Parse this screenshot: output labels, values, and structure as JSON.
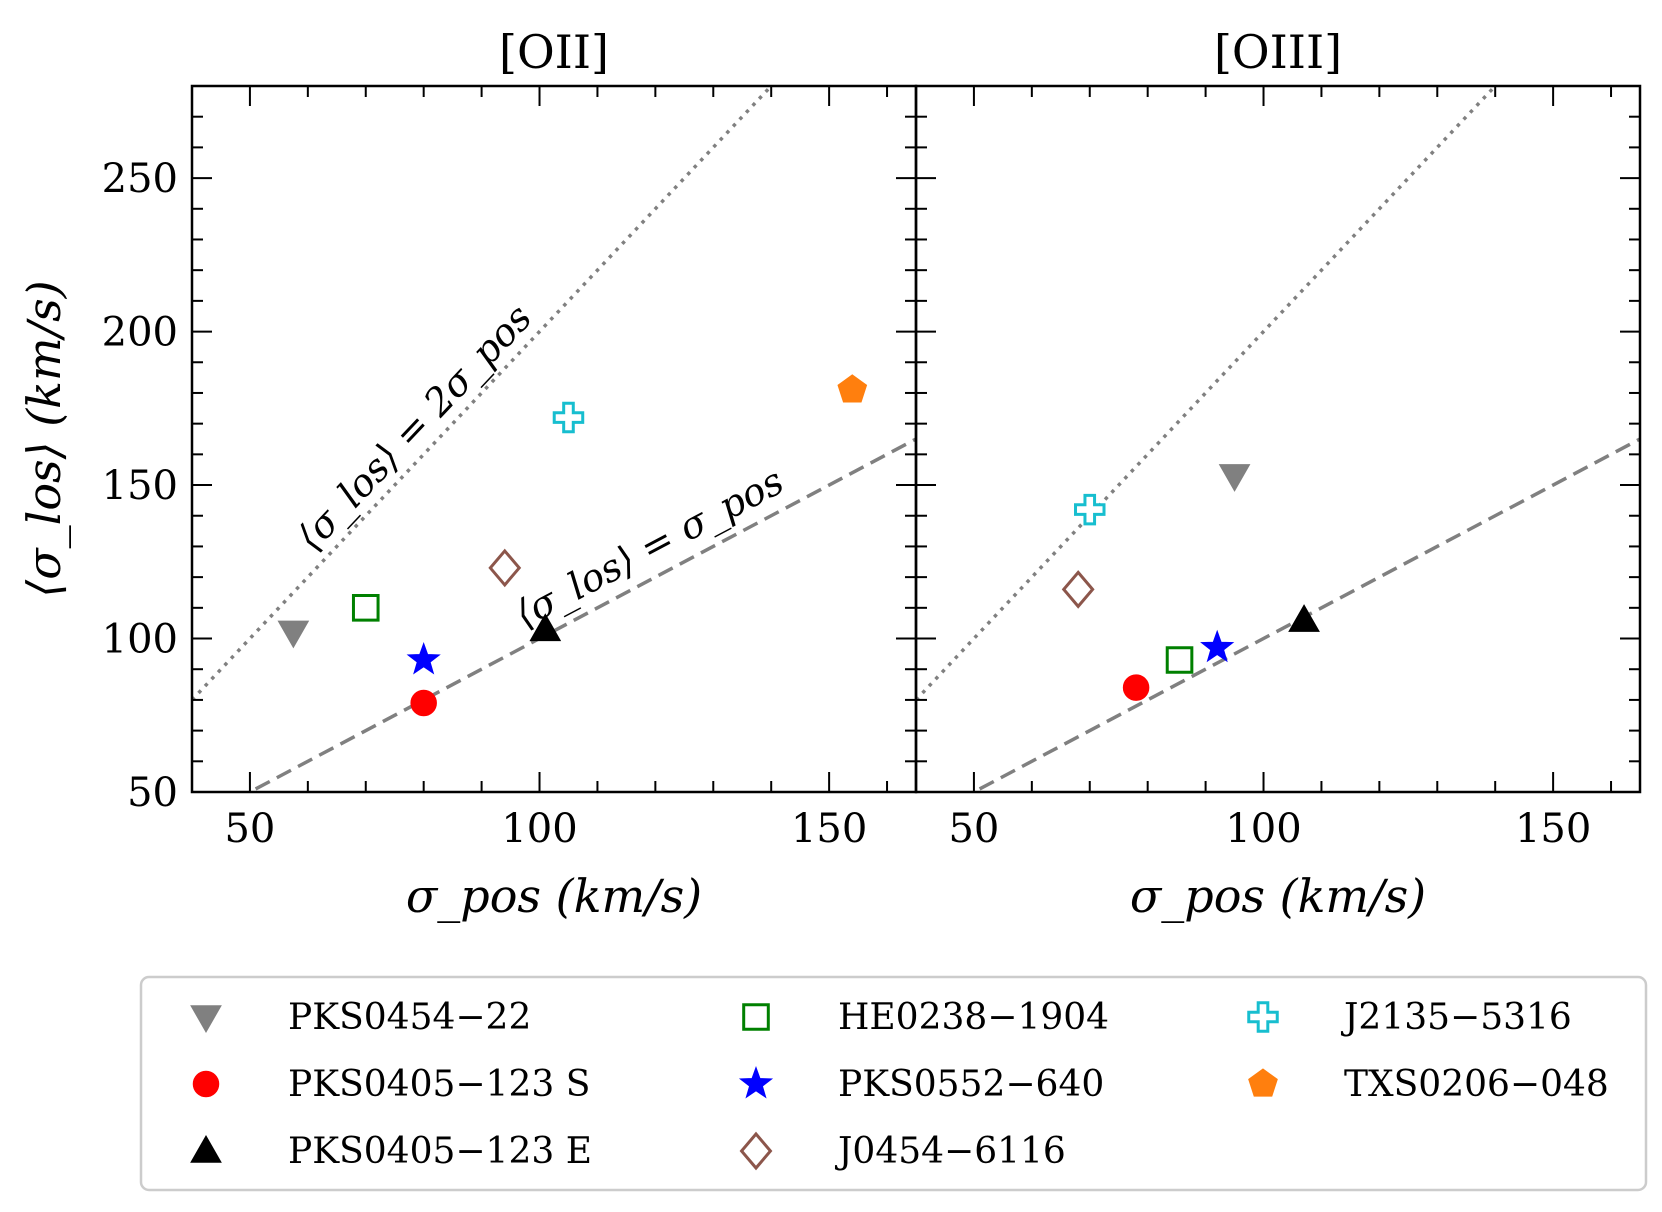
{
  "chart_data": [
    {
      "type": "scatter",
      "title": "[OII]",
      "xlabel": "σ_pos (km/s)",
      "ylabel": "⟨σ_los⟩ (km/s)",
      "xlim": [
        40,
        165
      ],
      "ylim": [
        50,
        280
      ],
      "xticks": [
        "50",
        "100",
        "150"
      ],
      "yticks": [
        "50",
        "100",
        "150",
        "200",
        "250"
      ],
      "grid": false,
      "reference_lines": [
        {
          "style": "dotted",
          "slope": 2,
          "label": "⟨σ_los⟩ = 2σ_pos"
        },
        {
          "style": "dashed",
          "slope": 1,
          "label": "⟨σ_los⟩ = σ_pos"
        }
      ],
      "series": [
        {
          "name": "PKS0454−22",
          "x": 57.5,
          "y": 102
        },
        {
          "name": "PKS0405−123 S",
          "x": 80,
          "y": 79
        },
        {
          "name": "PKS0405−123 E",
          "x": 101,
          "y": 103
        },
        {
          "name": "HE0238−1904",
          "x": 70,
          "y": 110
        },
        {
          "name": "PKS0552−640",
          "x": 80,
          "y": 93
        },
        {
          "name": "J0454−6116",
          "x": 94,
          "y": 123
        },
        {
          "name": "J2135−5316",
          "x": 105,
          "y": 172
        },
        {
          "name": "TXS0206−048",
          "x": 154,
          "y": 181
        }
      ]
    },
    {
      "type": "scatter",
      "title": "[OIII]",
      "xlabel": "σ_pos (km/s)",
      "ylabel": "",
      "xlim": [
        40,
        165
      ],
      "ylim": [
        50,
        280
      ],
      "xticks": [
        "50",
        "100",
        "150"
      ],
      "grid": false,
      "reference_lines": [
        {
          "style": "dotted",
          "slope": 2
        },
        {
          "style": "dashed",
          "slope": 1
        }
      ],
      "series": [
        {
          "name": "PKS0454−22",
          "x": 95,
          "y": 153
        },
        {
          "name": "PKS0405−123 S",
          "x": 78,
          "y": 84
        },
        {
          "name": "PKS0405−123 E",
          "x": 107,
          "y": 106
        },
        {
          "name": "HE0238−1904",
          "x": 85.5,
          "y": 93
        },
        {
          "name": "PKS0552−640",
          "x": 92,
          "y": 97
        },
        {
          "name": "J0454−6116",
          "x": 68,
          "y": 116
        },
        {
          "name": "J2135−5316",
          "x": 70,
          "y": 142
        }
      ]
    }
  ],
  "legend": {
    "placement": "bottom",
    "entries": [
      {
        "label": "PKS0454−22",
        "marker": "triangle-down",
        "color": "#808080",
        "filled": true
      },
      {
        "label": "PKS0405−123 S",
        "marker": "circle",
        "color": "#ff0000",
        "filled": true
      },
      {
        "label": "PKS0405−123 E",
        "marker": "triangle-up",
        "color": "#000000",
        "filled": true
      },
      {
        "label": "HE0238−1904",
        "marker": "square",
        "color": "#008000",
        "filled": false
      },
      {
        "label": "PKS0552−640",
        "marker": "star",
        "color": "#0000ff",
        "filled": true
      },
      {
        "label": "J0454−6116",
        "marker": "diamond",
        "color": "#8c564b",
        "filled": false
      },
      {
        "label": "J2135−5316",
        "marker": "plus",
        "color": "#17becf",
        "filled": false
      },
      {
        "label": "TXS0206−048",
        "marker": "pentagon",
        "color": "#ff7f0e",
        "filled": true
      }
    ]
  },
  "reference_line_color": "#808080"
}
